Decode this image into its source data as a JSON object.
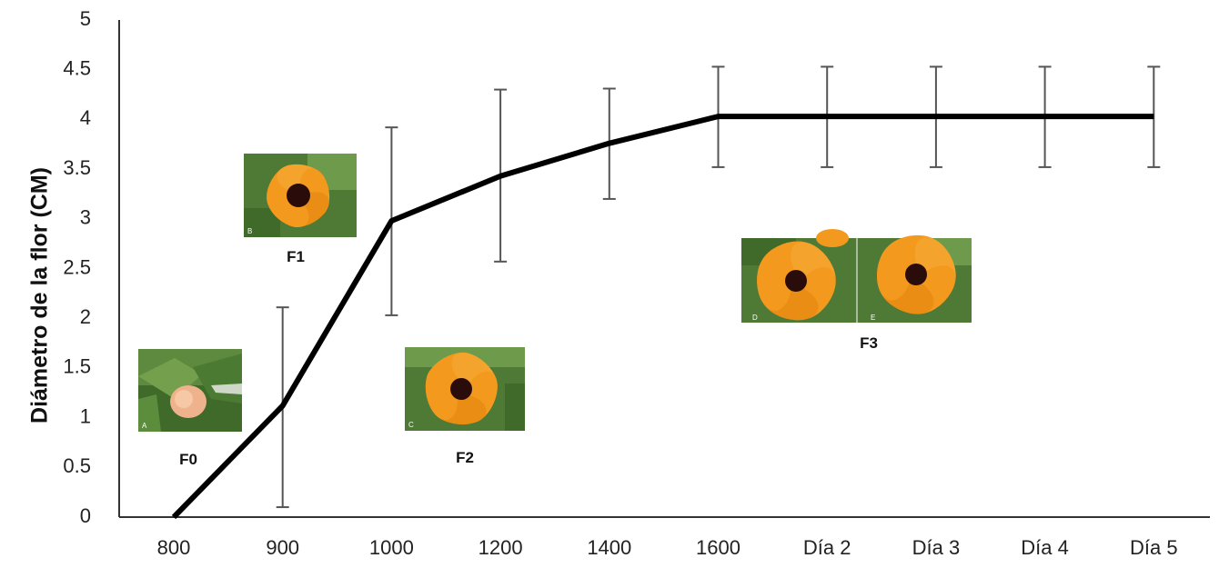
{
  "chart_data": {
    "type": "line",
    "title": "",
    "xlabel": "",
    "ylabel": "Diámetro de la flor (CM)",
    "categories": [
      "800",
      "900",
      "1000",
      "1200",
      "1400",
      "1600",
      "Día 2",
      "Día 3",
      "Día 4",
      "Día 5"
    ],
    "series": [
      {
        "values": [
          0,
          1.12,
          2.98,
          3.43,
          3.76,
          4.03,
          4.03,
          4.03,
          4.03,
          4.03
        ],
        "error_low": [
          null,
          0.1,
          2.03,
          2.57,
          3.2,
          3.52,
          3.52,
          3.52,
          3.52,
          3.52
        ],
        "error_high": [
          null,
          2.11,
          3.92,
          4.3,
          4.31,
          4.53,
          4.53,
          4.53,
          4.53,
          4.53
        ]
      }
    ],
    "ylim": [
      0,
      5
    ],
    "yticks": [
      "0",
      "0.5",
      "1",
      "1.5",
      "2",
      "2.5",
      "3",
      "3.5",
      "4",
      "4.5",
      "5"
    ],
    "grid": false,
    "line_color": "#000000",
    "errorbar_color": "#555555",
    "annotations": [
      {
        "label": "F0",
        "photos": [
          "A"
        ]
      },
      {
        "label": "F1",
        "photos": [
          "B"
        ]
      },
      {
        "label": "F2",
        "photos": [
          "C"
        ]
      },
      {
        "label": "F3",
        "photos": [
          "D",
          "E"
        ]
      }
    ]
  },
  "colors": {
    "petal": "#f39a1e",
    "petal_dark": "#e07f0d",
    "center": "#2a0d0a",
    "leaf": "#4f7a36",
    "leaf_light": "#7fa15a",
    "bud": "#eeb38c"
  }
}
